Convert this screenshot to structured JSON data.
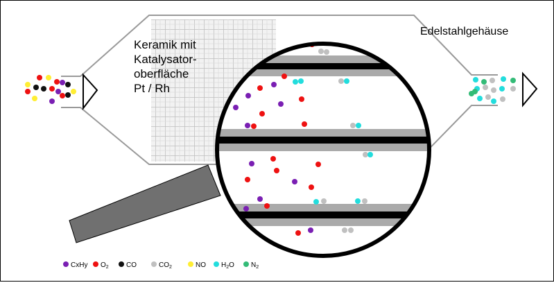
{
  "labels": {
    "ceramic": [
      "Keramik mit",
      "Katalysator-",
      "oberfläche",
      "Pt / Rh"
    ],
    "housing": "Edelstahlgehäuse"
  },
  "legend": [
    {
      "label": "CxHy",
      "color": "#7a1fb3"
    },
    {
      "label": "O",
      "sub": "2",
      "color": "#ee1111"
    },
    {
      "label": "CO",
      "color": "#111111"
    },
    {
      "label": "CO",
      "sub": "2",
      "color": "#c0c0c0"
    },
    {
      "label": "NO",
      "color": "#ffee33"
    },
    {
      "label": "H",
      "sub": "2",
      "tail": "O",
      "color": "#22dddd"
    },
    {
      "label": "N",
      "sub": "2",
      "color": "#33bb77"
    }
  ]
}
